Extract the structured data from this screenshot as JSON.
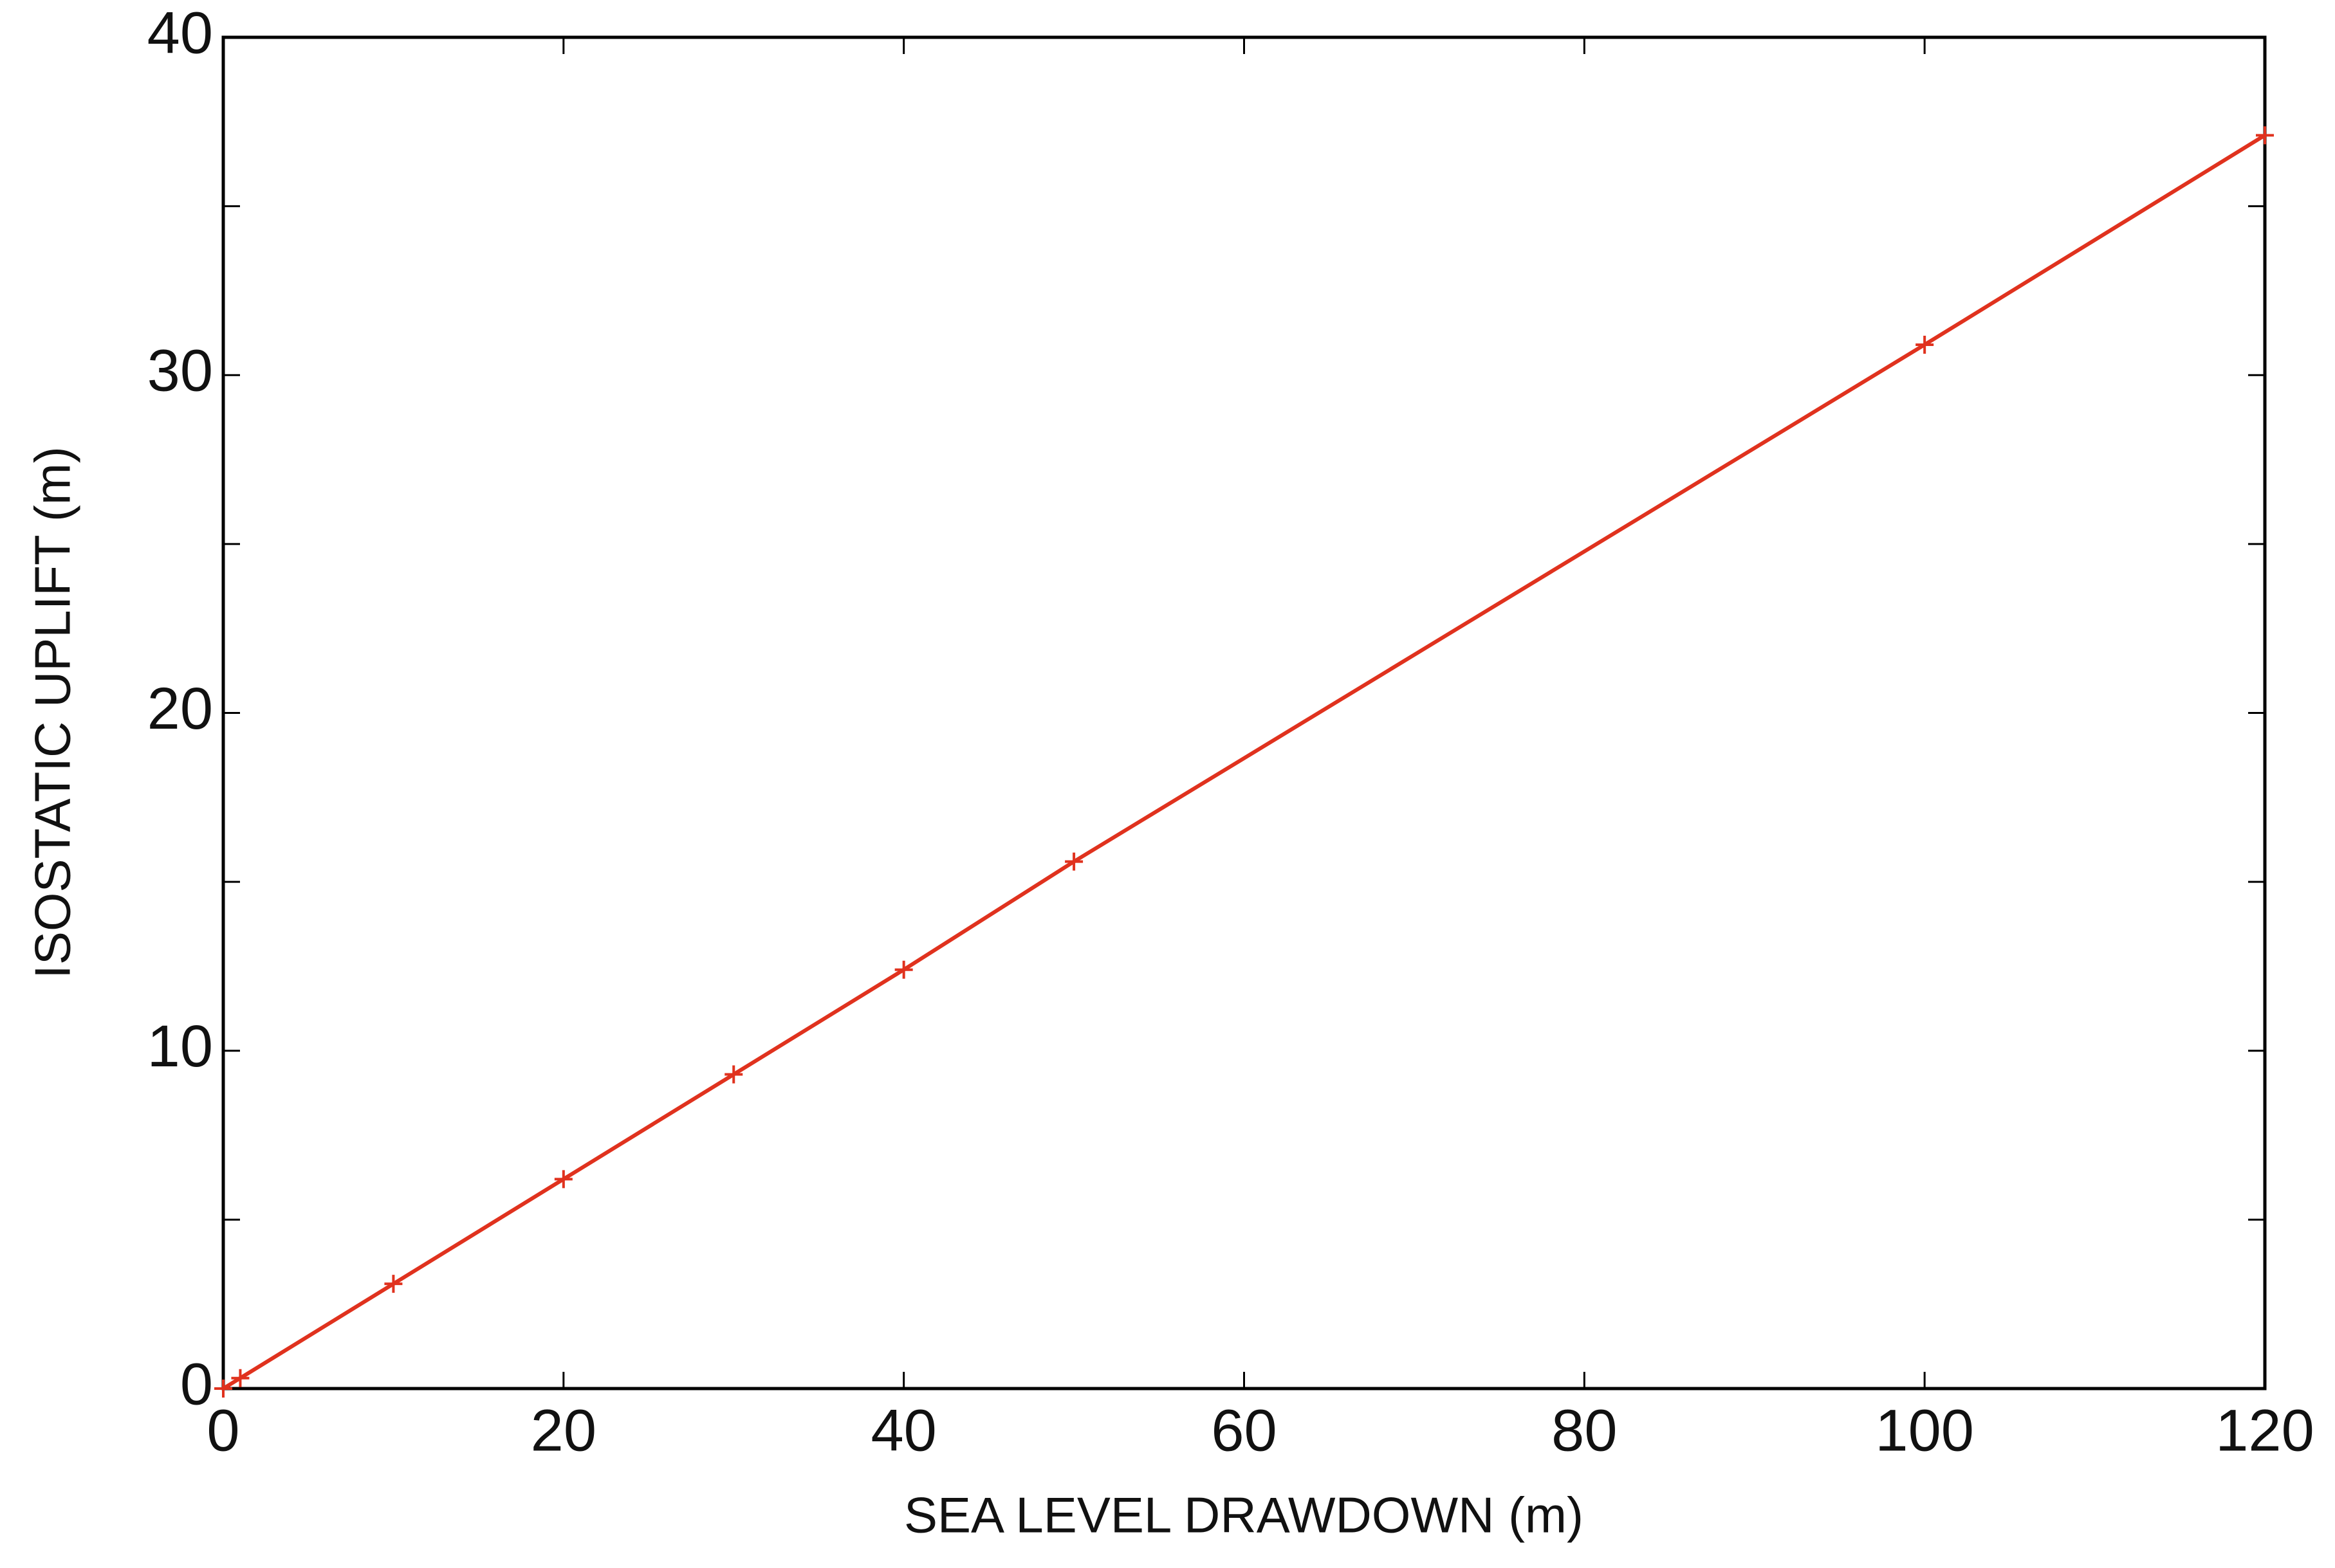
{
  "chart_data": {
    "type": "line",
    "x_label": "SEA LEVEL DRAWDOWN (m)",
    "y_label": "ISOSTATIC UPLIFT (m)",
    "x": [
      0,
      1,
      10,
      20,
      30,
      40,
      50,
      100,
      120
    ],
    "series": [
      {
        "color": "#e0321e",
        "marker": "+",
        "values": [
          0,
          0.31,
          3.1,
          6.2,
          9.3,
          12.4,
          15.6,
          30.9,
          37.1
        ]
      }
    ],
    "xlim": [
      0,
      120
    ],
    "xticks": [
      0,
      20,
      40,
      60,
      80,
      100,
      120
    ],
    "ylim": [
      0,
      40
    ],
    "yticks": [
      0,
      10,
      20,
      30,
      40
    ],
    "yminor_ticks": [
      5,
      15,
      25,
      35
    ],
    "grid": false
  }
}
